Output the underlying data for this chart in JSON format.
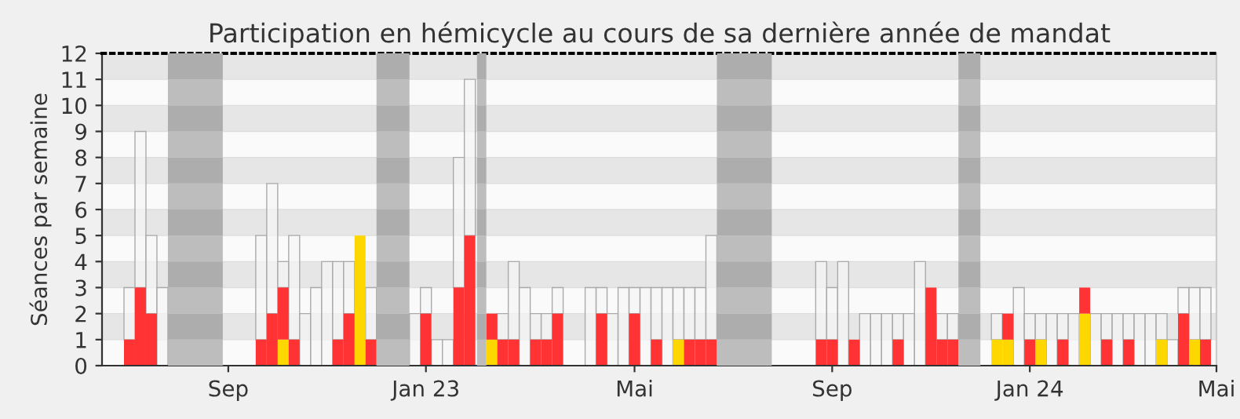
{
  "chart_data": {
    "type": "bar",
    "title": "Participation en hémicycle au cours de sa dernière année de mandat",
    "ylabel": "Séances par semaine",
    "categories": [
      null,
      null,
      null,
      null,
      null,
      null,
      null,
      null,
      null,
      "Sep",
      null,
      null,
      null,
      null,
      null,
      null,
      null,
      null,
      null,
      null,
      null,
      null,
      null,
      null,
      null,
      null,
      null,
      "Jan 23",
      null,
      null,
      null,
      null,
      null,
      null,
      null,
      null,
      null,
      null,
      null,
      null,
      null,
      null,
      null,
      null,
      null,
      null,
      "Mai",
      null,
      null,
      null,
      null,
      null,
      null,
      null,
      null,
      null,
      null,
      null,
      null,
      null,
      null,
      null,
      null,
      null,
      "Sep",
      null,
      null,
      null,
      null,
      null,
      null,
      null,
      null,
      null,
      null,
      null,
      null,
      null,
      null,
      null,
      null,
      null,
      "Jan 24",
      null,
      null,
      null,
      null,
      null,
      null,
      null,
      null,
      null,
      null,
      null,
      null,
      null,
      null,
      null,
      null,
      "Mai"
    ],
    "stacked": true,
    "ylim": [
      0,
      12
    ],
    "yticks": [
      0,
      1,
      2,
      3,
      4,
      5,
      6,
      7,
      8,
      9,
      10,
      11,
      12
    ],
    "grid": "y",
    "series": [
      {
        "color": "#ffd700",
        "values": [
          null,
          null,
          null,
          null,
          null,
          null,
          null,
          null,
          null,
          null,
          null,
          null,
          null,
          null,
          1,
          null,
          null,
          null,
          null,
          null,
          null,
          5,
          null,
          null,
          null,
          null,
          null,
          null,
          null,
          null,
          null,
          null,
          null,
          1,
          null,
          null,
          null,
          null,
          null,
          null,
          null,
          null,
          null,
          null,
          null,
          null,
          null,
          null,
          null,
          null,
          1,
          null,
          null,
          null,
          null,
          null,
          null,
          null,
          null,
          null,
          null,
          null,
          null,
          null,
          null,
          null,
          null,
          null,
          null,
          null,
          null,
          null,
          null,
          null,
          null,
          null,
          null,
          null,
          null,
          1,
          1,
          null,
          null,
          1,
          null,
          null,
          null,
          2,
          null,
          null,
          null,
          null,
          null,
          null,
          1,
          null,
          null,
          1,
          null,
          null
        ]
      },
      {
        "color": "#ff3333",
        "values": [
          1,
          3,
          2,
          null,
          null,
          null,
          null,
          null,
          null,
          null,
          null,
          null,
          1,
          2,
          2,
          1,
          null,
          null,
          null,
          1,
          2,
          null,
          1,
          null,
          null,
          null,
          null,
          2,
          null,
          null,
          3,
          5,
          null,
          1,
          1,
          1,
          null,
          1,
          1,
          2,
          null,
          null,
          null,
          2,
          null,
          null,
          2,
          null,
          1,
          null,
          null,
          1,
          1,
          1,
          null,
          null,
          null,
          null,
          null,
          null,
          null,
          null,
          null,
          1,
          1,
          null,
          1,
          null,
          null,
          null,
          1,
          null,
          null,
          3,
          1,
          1,
          null,
          null,
          null,
          null,
          1,
          null,
          1,
          null,
          null,
          1,
          null,
          1,
          null,
          1,
          null,
          1,
          null,
          null,
          null,
          null,
          2,
          null,
          1,
          null
        ]
      },
      {
        "color": "#aaaaaa",
        "values": [
          2,
          6,
          3,
          3,
          null,
          null,
          null,
          null,
          null,
          null,
          null,
          null,
          4,
          5,
          1,
          4,
          2,
          3,
          4,
          3,
          2,
          null,
          2,
          null,
          null,
          null,
          2,
          1,
          1,
          1,
          5,
          6,
          null,
          null,
          1,
          3,
          3,
          1,
          1,
          1,
          null,
          null,
          3,
          1,
          2,
          3,
          1,
          3,
          2,
          3,
          2,
          2,
          2,
          4,
          null,
          null,
          null,
          null,
          null,
          null,
          null,
          null,
          null,
          3,
          2,
          4,
          null,
          2,
          2,
          2,
          1,
          2,
          4,
          null,
          1,
          1,
          null,
          null,
          null,
          1,
          null,
          3,
          1,
          1,
          2,
          1,
          2,
          null,
          2,
          1,
          2,
          1,
          2,
          2,
          1,
          1,
          1,
          2,
          2,
          null
        ]
      }
    ]
  }
}
